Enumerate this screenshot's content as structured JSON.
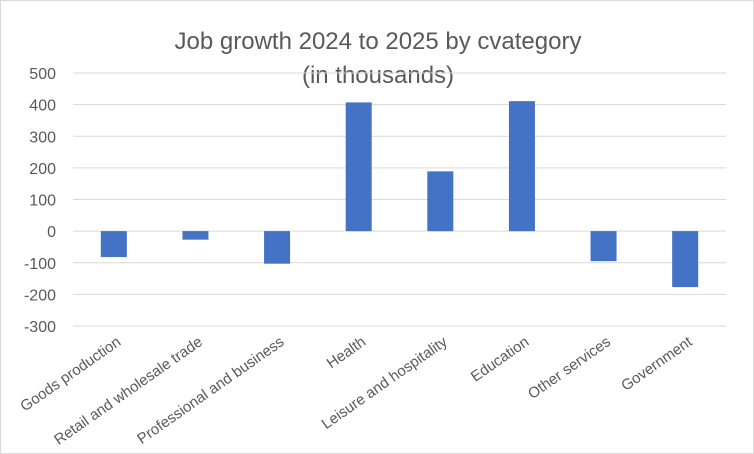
{
  "chart_data": {
    "type": "bar",
    "title": "Job growth 2024 to 2025 by cvategory",
    "subtitle": "(in thousands)",
    "categories": [
      "Goods production",
      "Retail and wholesale trade",
      "Professional and business",
      "Health",
      "Leisure and hospitality",
      "Education",
      "Other services",
      "Government"
    ],
    "values": [
      -82,
      -27,
      -103,
      407,
      189,
      411,
      -95,
      -177
    ],
    "ylim": [
      -300,
      500
    ],
    "yticks": [
      500,
      400,
      300,
      200,
      100,
      0,
      -100,
      -200,
      -300
    ],
    "grid": true,
    "bar_color": "#4472C4"
  }
}
